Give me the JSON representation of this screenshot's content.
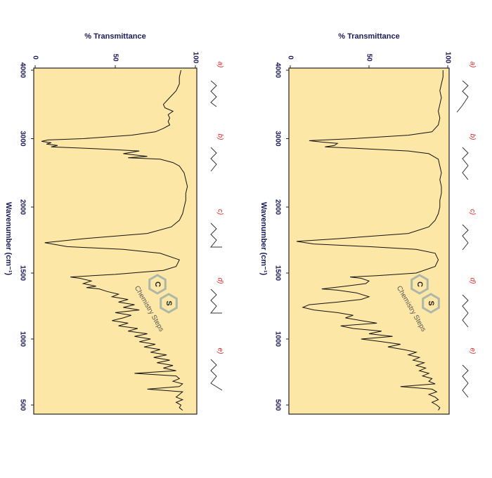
{
  "chart_data": [
    {
      "type": "line",
      "ylabel": "% Transmittance",
      "xlabel": "Wavenumber (cm⁻¹)",
      "xlim": [
        4000,
        500
      ],
      "x_break": 2000,
      "xticks": [
        4000,
        3000,
        2000,
        1500,
        1000,
        500
      ],
      "ylim": [
        0,
        100
      ],
      "yticks": [
        0,
        50,
        100
      ],
      "plot_background": "#fde7a6",
      "color": "#111111",
      "choices": [
        "a)",
        "b)",
        "c)",
        "d)",
        "e)"
      ],
      "watermark": "Chemistry Steps",
      "logo_letters": [
        "C",
        "S"
      ],
      "x": [
        4000,
        3900,
        3800,
        3700,
        3600,
        3500,
        3450,
        3400,
        3350,
        3300,
        3250,
        3200,
        3150,
        3100,
        3050,
        3000,
        2980,
        2960,
        2940,
        2920,
        2900,
        2880,
        2850,
        2820,
        2780,
        2740,
        2720,
        2700,
        2650,
        2600,
        2500,
        2400,
        2300,
        2200,
        2100,
        2000,
        1950,
        1900,
        1850,
        1800,
        1760,
        1730,
        1700,
        1680,
        1650,
        1600,
        1550,
        1520,
        1490,
        1470,
        1460,
        1440,
        1420,
        1400,
        1390,
        1380,
        1360,
        1340,
        1320,
        1300,
        1280,
        1260,
        1240,
        1220,
        1200,
        1180,
        1160,
        1140,
        1120,
        1100,
        1080,
        1060,
        1040,
        1020,
        1000,
        980,
        960,
        940,
        920,
        900,
        880,
        860,
        840,
        820,
        800,
        780,
        760,
        740,
        720,
        700,
        680,
        660,
        640,
        620,
        600,
        580,
        560,
        540,
        520,
        500,
        480,
        460
      ],
      "values": [
        91,
        90,
        90,
        88,
        84,
        80,
        81,
        86,
        83,
        84,
        83,
        84,
        80,
        75,
        60,
        30,
        8,
        4,
        10,
        7,
        14,
        10,
        40,
        65,
        55,
        70,
        58,
        78,
        86,
        90,
        93,
        94,
        95,
        94,
        94,
        93,
        92,
        90,
        85,
        70,
        30,
        6,
        20,
        55,
        78,
        90,
        88,
        80,
        50,
        22,
        28,
        35,
        30,
        38,
        32,
        40,
        45,
        52,
        48,
        58,
        52,
        62,
        55,
        65,
        50,
        60,
        55,
        48,
        58,
        52,
        64,
        58,
        70,
        62,
        72,
        65,
        75,
        68,
        78,
        72,
        82,
        74,
        84,
        76,
        86,
        80,
        88,
        62,
        88,
        90,
        86,
        92,
        90,
        70,
        92,
        90,
        88,
        92,
        88,
        91,
        90,
        92
      ]
    },
    {
      "type": "line",
      "ylabel": "% Transmittance",
      "xlabel": "Wavenumber (cm⁻¹)",
      "xlim": [
        4000,
        500
      ],
      "x_break": 2000,
      "xticks": [
        4000,
        3000,
        2000,
        1500,
        1000,
        500
      ],
      "ylim": [
        0,
        100
      ],
      "yticks": [
        0,
        50,
        100
      ],
      "plot_background": "#fde7a6",
      "color": "#111111",
      "choices": [
        "a)",
        "b)",
        "c)",
        "d)",
        "e)"
      ],
      "watermark": "Chemistry Steps",
      "logo_letters": [
        "C",
        "S"
      ],
      "x": [
        4000,
        3900,
        3800,
        3700,
        3600,
        3500,
        3400,
        3300,
        3200,
        3100,
        3050,
        3000,
        2970,
        2950,
        2930,
        2900,
        2880,
        2860,
        2820,
        2780,
        2700,
        2600,
        2500,
        2400,
        2300,
        2200,
        2100,
        2000,
        1950,
        1900,
        1850,
        1800,
        1760,
        1740,
        1720,
        1700,
        1680,
        1650,
        1600,
        1550,
        1500,
        1480,
        1470,
        1460,
        1440,
        1420,
        1400,
        1380,
        1370,
        1350,
        1320,
        1300,
        1280,
        1260,
        1240,
        1220,
        1200,
        1180,
        1160,
        1140,
        1120,
        1100,
        1080,
        1060,
        1040,
        1020,
        1000,
        980,
        960,
        940,
        920,
        900,
        880,
        860,
        840,
        820,
        800,
        780,
        760,
        740,
        720,
        700,
        680,
        660,
        640,
        620,
        600,
        580,
        560,
        540,
        520,
        500,
        480,
        460
      ],
      "values": [
        97,
        97,
        96,
        95,
        96,
        95,
        94,
        95,
        94,
        90,
        75,
        40,
        12,
        20,
        30,
        28,
        22,
        40,
        75,
        88,
        94,
        95,
        96,
        95,
        96,
        96,
        95,
        95,
        94,
        92,
        88,
        75,
        30,
        4,
        15,
        50,
        80,
        92,
        94,
        92,
        80,
        55,
        38,
        45,
        50,
        48,
        35,
        20,
        30,
        42,
        50,
        45,
        30,
        12,
        8,
        15,
        30,
        40,
        35,
        45,
        55,
        32,
        40,
        58,
        50,
        65,
        45,
        58,
        70,
        62,
        72,
        80,
        75,
        82,
        78,
        85,
        80,
        86,
        82,
        88,
        84,
        90,
        88,
        92,
        70,
        90,
        93,
        88,
        92,
        94,
        90,
        93,
        95,
        94
      ]
    }
  ]
}
